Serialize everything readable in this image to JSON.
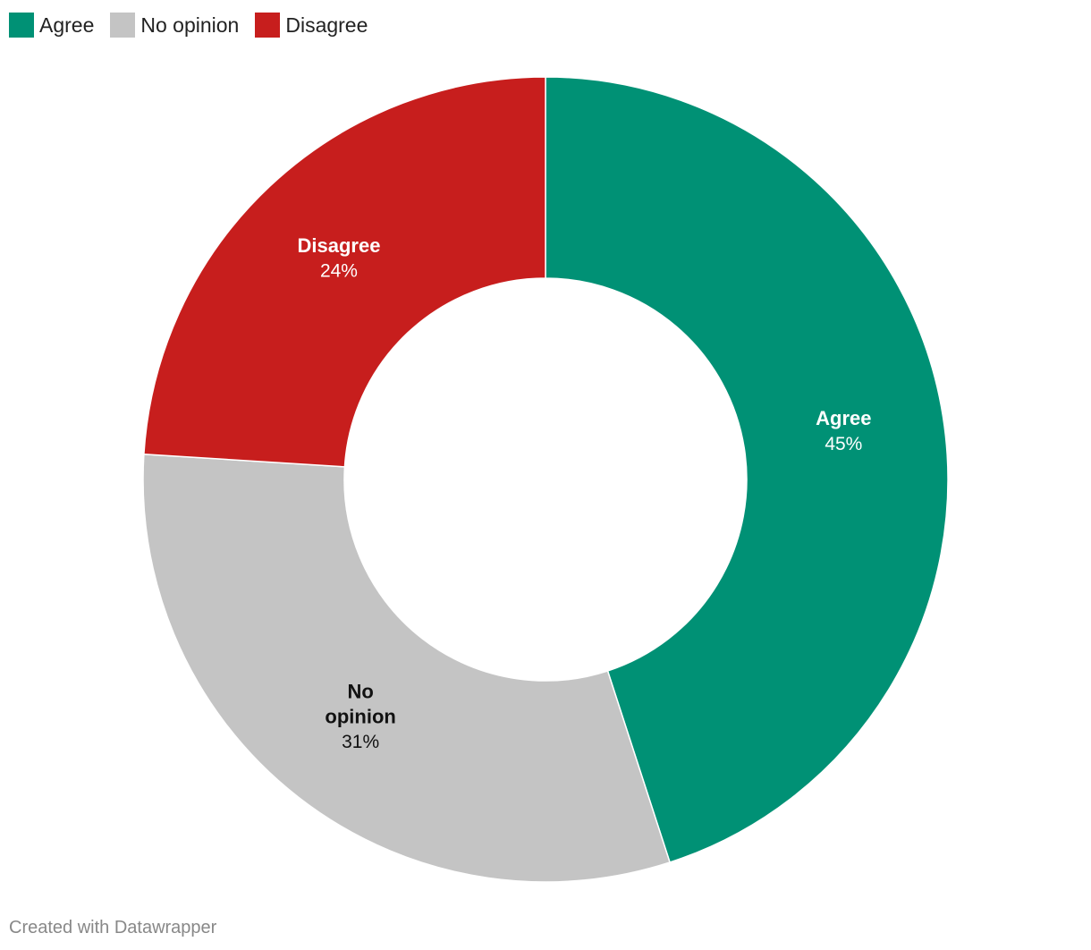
{
  "chart_data": {
    "type": "pie",
    "variant": "donut",
    "categories": [
      "Agree",
      "No opinion",
      "Disagree"
    ],
    "values": [
      45,
      31,
      24
    ],
    "value_labels": [
      "45%",
      "31%",
      "24%"
    ],
    "colors": [
      "#009175",
      "#c4c4c4",
      "#c71e1d"
    ],
    "label_text_colors": [
      "#ffffff",
      "#111111",
      "#ffffff"
    ],
    "label_lines": [
      [
        "Agree"
      ],
      [
        "No",
        "opinion"
      ],
      [
        "Disagree"
      ]
    ],
    "start_angle_deg": 0,
    "direction": "clockwise",
    "legend_placement": "top-left",
    "title": "",
    "footer": "Created with Datawrapper"
  },
  "legend": {
    "items": [
      {
        "label": "Agree",
        "color": "#009175"
      },
      {
        "label": "No opinion",
        "color": "#c4c4c4"
      },
      {
        "label": "Disagree",
        "color": "#c71e1d"
      }
    ]
  }
}
